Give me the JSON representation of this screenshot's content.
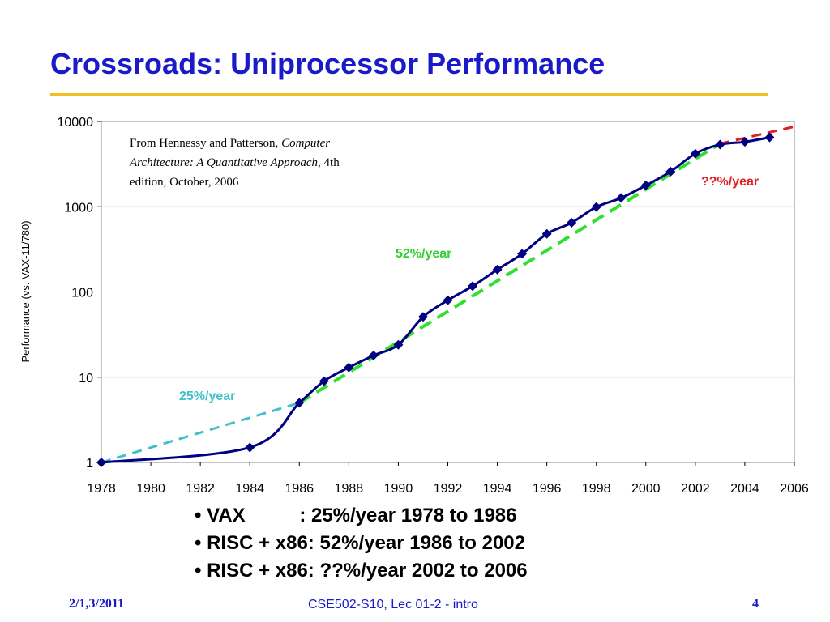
{
  "slide": {
    "title": "Crossroads: Uniprocessor Performance",
    "bullets": [
      "• VAX          : 25%/year 1978 to 1986",
      "• RISC + x86: 52%/year 1986 to 2002",
      "• RISC + x86: ??%/year 2002 to 2006"
    ],
    "footer_date": "2/1,3/2011",
    "footer_center": "CSE502-S10, Lec 01-2 - intro",
    "page_number": "4"
  },
  "chart_data": {
    "type": "line",
    "title": "",
    "xlabel": "",
    "ylabel": "Performance (vs. VAX-11/780)",
    "yscale": "log",
    "xlim": [
      1978,
      2006
    ],
    "ylim": [
      1,
      10000
    ],
    "grid": "horizontal",
    "x_ticks": [
      "1978",
      "1980",
      "1982",
      "1984",
      "1986",
      "1988",
      "1990",
      "1992",
      "1994",
      "1996",
      "1998",
      "2000",
      "2002",
      "2004",
      "2006"
    ],
    "y_ticks": [
      "1",
      "10",
      "100",
      "1000",
      "10000"
    ],
    "series": [
      {
        "color": "#000080",
        "x": [
          1978,
          1984,
          1986,
          1987,
          1988,
          1989,
          1990,
          1991,
          1992,
          1993,
          1994,
          1995,
          1996,
          1997,
          1998,
          1999,
          2000,
          2001,
          2002,
          2003,
          2004,
          2005
        ],
        "values": [
          1,
          1.5,
          5,
          9,
          13,
          18,
          24,
          51,
          80,
          117,
          183,
          280,
          481,
          649,
          993,
          1267,
          1779,
          2584,
          4195,
          5364,
          5764,
          6505
        ]
      }
    ],
    "trend_lines": [
      {
        "label": "25%/year",
        "color": "#40c0c8",
        "x": [
          1978,
          1986
        ],
        "values": [
          1,
          5
        ]
      },
      {
        "label": "52%/year",
        "color": "#30e030",
        "x": [
          1986,
          2003
        ],
        "values": [
          5,
          5500
        ]
      },
      {
        "label": "??%/year",
        "color": "#e02020",
        "x": [
          2003,
          2006
        ],
        "values": [
          5500,
          8700
        ]
      }
    ],
    "annotation": {
      "line1": "From Hennessy and Patterson, ",
      "line1_italic": "Computer",
      "line2_italic": "Architecture: A Quantitative Approach",
      "line2": ", 4th",
      "line3": "edition, October, 2006"
    }
  }
}
